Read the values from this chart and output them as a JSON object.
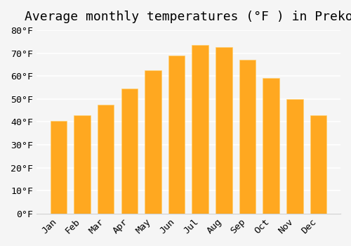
{
  "title": "Average monthly temperatures (°F ) in Preko",
  "months": [
    "Jan",
    "Feb",
    "Mar",
    "Apr",
    "May",
    "Jun",
    "Jul",
    "Aug",
    "Sep",
    "Oct",
    "Nov",
    "Dec"
  ],
  "values": [
    40.5,
    43.0,
    47.5,
    54.5,
    62.5,
    69.0,
    73.5,
    72.5,
    67.0,
    59.0,
    50.0,
    43.0
  ],
  "bar_color_face": "#FFA500",
  "bar_color_edge": "#FFD080",
  "ylim": [
    0,
    80
  ],
  "ytick_step": 10,
  "background_color": "#f5f5f5",
  "grid_color": "#ffffff",
  "title_fontsize": 13,
  "tick_fontsize": 9.5
}
